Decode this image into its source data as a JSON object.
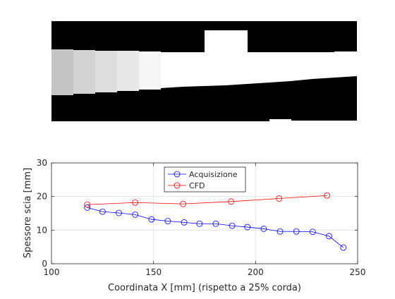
{
  "image_panel": {
    "description_hidden": true,
    "segments": [
      {
        "gray": "#c4c4c4",
        "upper": 0.0,
        "lower": 0.0
      },
      {
        "gray": "#d4d4d4",
        "upper": 0.0,
        "lower": 0.0
      },
      {
        "gray": "#dedede",
        "upper": 0.0,
        "lower": 0.0
      },
      {
        "gray": "#e8e8e8",
        "upper": 0.0,
        "lower": 0.0
      },
      {
        "gray": "#f7f7f7",
        "upper": 0.0,
        "lower": 0.0
      },
      {
        "gray": "#ffffff",
        "upper": 0.0,
        "lower": 0.0
      }
    ]
  },
  "chart_data": {
    "type": "line",
    "xlabel": "Coordinata X [mm] (rispetto a 25% corda)",
    "ylabel": "Spessore scia [mm]",
    "xlim": [
      100,
      250
    ],
    "ylim": [
      0,
      30
    ],
    "xticks": [
      100,
      150,
      200,
      250
    ],
    "yticks": [
      0,
      10,
      20,
      30
    ],
    "grid": true,
    "legend_position": "top-center",
    "series": [
      {
        "name": "Acquisizione",
        "color": "#0000ff",
        "marker": "circle",
        "x": [
          117.5,
          125,
          133,
          141,
          149,
          157,
          165,
          172.5,
          180.5,
          188.5,
          196,
          204,
          212,
          220,
          228,
          236,
          243
        ],
        "y": [
          16.7,
          15.5,
          15.1,
          14.6,
          13.2,
          12.7,
          12.3,
          11.9,
          11.9,
          11.3,
          10.9,
          10.4,
          9.6,
          9.6,
          9.5,
          8.2,
          4.8
        ]
      },
      {
        "name": "CFD",
        "color": "#ff0000",
        "marker": "circle",
        "x": [
          117.5,
          141,
          164.5,
          188,
          211.5,
          235
        ],
        "y": [
          17.6,
          18.2,
          17.8,
          18.5,
          19.4,
          20.3
        ]
      }
    ]
  }
}
